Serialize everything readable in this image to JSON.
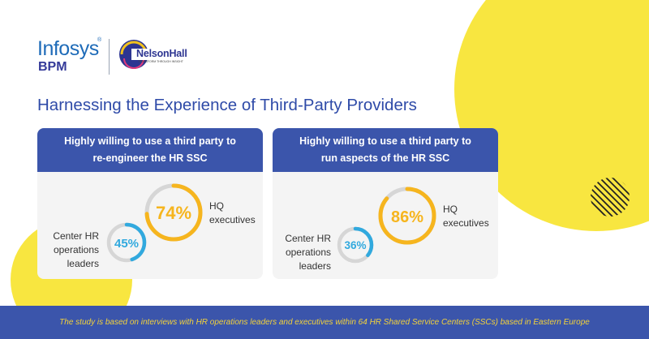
{
  "brand": {
    "infosys": "Infosys",
    "registered_mark": "®",
    "bpm": "BPM",
    "nelsonhall": "NelsonHall",
    "nelsonhall_tagline": "TRANSFORM THROUGH INSIGHT"
  },
  "title": "Harnessing the Experience of Third-Party Providers",
  "cards": [
    {
      "header_line1": "Highly willing to use a third party to",
      "header_line2": "re-engineer the HR SSC",
      "hq_value": "74%",
      "hq_fraction": 0.74,
      "hq_label_line1": "HQ",
      "hq_label_line2": "executives",
      "center_value": "45%",
      "center_fraction": 0.45,
      "center_label_line1": "Center HR",
      "center_label_line2": "operations",
      "center_label_line3": "leaders"
    },
    {
      "header_line1": "Highly willing to use a third party to",
      "header_line2": "run aspects of the HR SSC",
      "hq_value": "86%",
      "hq_fraction": 0.86,
      "hq_label_line1": "HQ",
      "hq_label_line2": "executives",
      "center_value": "36%",
      "center_fraction": 0.36,
      "center_label_line1": "Center HR",
      "center_label_line2": "operations",
      "center_label_line3": "leaders"
    }
  ],
  "colors": {
    "hq_ring": "#f6b51e",
    "center_ring": "#31a9de",
    "track": "#d6d6d6",
    "blue": "#3b55ab",
    "yellow_decor": "#f8e640"
  },
  "footer": "The study is based on interviews with HR operations leaders and executives within 64 HR Shared Service Centers (SSCs) based in Eastern Europe"
}
